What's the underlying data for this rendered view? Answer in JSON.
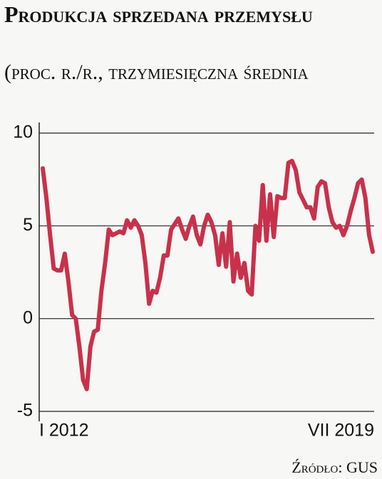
{
  "chart_data": {
    "type": "line",
    "title": "Produkcja sprzedana przemysłu",
    "subtitle": "(proc. r./r., trzymiesięczna średnia",
    "source": "Źródło: GUS",
    "categories": [
      "I 2012",
      null,
      null,
      null,
      null,
      null,
      null,
      null,
      null,
      null,
      null,
      null,
      null,
      null,
      null,
      null,
      null,
      null,
      null,
      null,
      null,
      null,
      null,
      null,
      null,
      null,
      null,
      null,
      null,
      null,
      null,
      null,
      null,
      null,
      null,
      null,
      null,
      null,
      null,
      null,
      null,
      null,
      null,
      null,
      null,
      null,
      null,
      null,
      null,
      null,
      null,
      null,
      null,
      null,
      null,
      null,
      null,
      null,
      null,
      null,
      null,
      null,
      null,
      null,
      null,
      null,
      null,
      null,
      null,
      null,
      null,
      null,
      null,
      null,
      null,
      null,
      null,
      null,
      null,
      null,
      null,
      null,
      null,
      null,
      null,
      null,
      null,
      null,
      null,
      null,
      "VII 2019"
    ],
    "series": [
      {
        "name": "Produkcja sprzedana przemysłu",
        "color": "#c8314b",
        "values": [
          8.1,
          6.5,
          4.5,
          2.7,
          2.6,
          2.6,
          3.5,
          2.0,
          0.2,
          0.0,
          -1.5,
          -3.3,
          -3.8,
          -1.5,
          -0.7,
          -0.6,
          1.5,
          3.0,
          4.8,
          4.5,
          4.6,
          4.7,
          4.6,
          5.3,
          4.9,
          5.3,
          5.0,
          4.5,
          3.0,
          0.8,
          1.5,
          1.4,
          2.2,
          3.4,
          3.4,
          4.8,
          5.1,
          5.4,
          4.8,
          4.3,
          5.0,
          5.5,
          4.5,
          4.0,
          5.0,
          5.6,
          5.2,
          4.5,
          2.9,
          4.6,
          2.8,
          5.2,
          2.0,
          3.5,
          2.2,
          3.0,
          1.5,
          1.3,
          5.0,
          4.2,
          7.2,
          4.2,
          6.7,
          4.4,
          6.6,
          6.5,
          6.5,
          8.4,
          8.5,
          8.0,
          6.8,
          6.4,
          6.0,
          6.0,
          5.4,
          7.1,
          7.4,
          7.3,
          6.0,
          5.2,
          4.9,
          5.0,
          4.5,
          5.0,
          5.8,
          6.5,
          7.3,
          7.5,
          6.5,
          4.5,
          3.6
        ]
      }
    ],
    "ylim": [
      -5,
      10
    ],
    "yticks": [
      -5,
      0,
      5,
      10
    ],
    "grid": true
  }
}
